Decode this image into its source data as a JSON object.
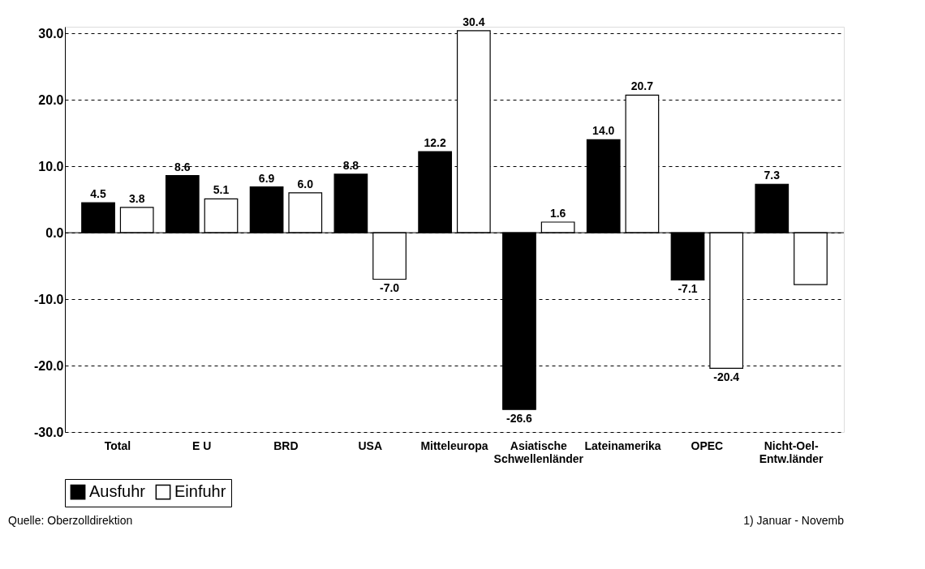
{
  "chart_data": {
    "type": "bar",
    "categories": [
      "Total",
      "E U",
      "BRD",
      "USA",
      "Mitteleuropa",
      "Asiatische\nSchwellenländer",
      "Lateinamerika",
      "OPEC",
      "Nicht-Oel-\nEntw.länder"
    ],
    "series": [
      {
        "name": "Ausfuhr",
        "color": "#000000",
        "values": [
          4.5,
          8.6,
          6.9,
          8.8,
          12.2,
          -26.6,
          14.0,
          -7.1,
          7.3
        ],
        "value_labels": [
          "4.5",
          "8.6",
          "6.9",
          "8.8",
          "12.2",
          "-26.6",
          "14.0",
          "-7.1",
          "7.3"
        ]
      },
      {
        "name": "Einfuhr",
        "color": "#ffffff",
        "values": [
          3.8,
          5.1,
          6.0,
          -7.0,
          30.4,
          1.6,
          20.7,
          -20.4,
          -7.8
        ],
        "value_labels": [
          "3.8",
          "5.1",
          "6.0",
          "-7.0",
          "30.4",
          "1.6",
          "20.7",
          "-20.4",
          null
        ]
      }
    ],
    "ylim": [
      -30,
      31
    ],
    "yticks": [
      {
        "value": -30,
        "label": "-30.0"
      },
      {
        "value": -20,
        "label": "-20.0"
      },
      {
        "value": -10,
        "label": "-10.0"
      },
      {
        "value": 0,
        "label": "0.0"
      },
      {
        "value": 10,
        "label": "10.0"
      },
      {
        "value": 20,
        "label": "20.0"
      },
      {
        "value": 30,
        "label": "30.0"
      }
    ],
    "grid": "y",
    "legend": "bottom",
    "annotations": [
      "Quelle: Oberzolldirektion",
      "1) Januar - Novemb"
    ]
  }
}
